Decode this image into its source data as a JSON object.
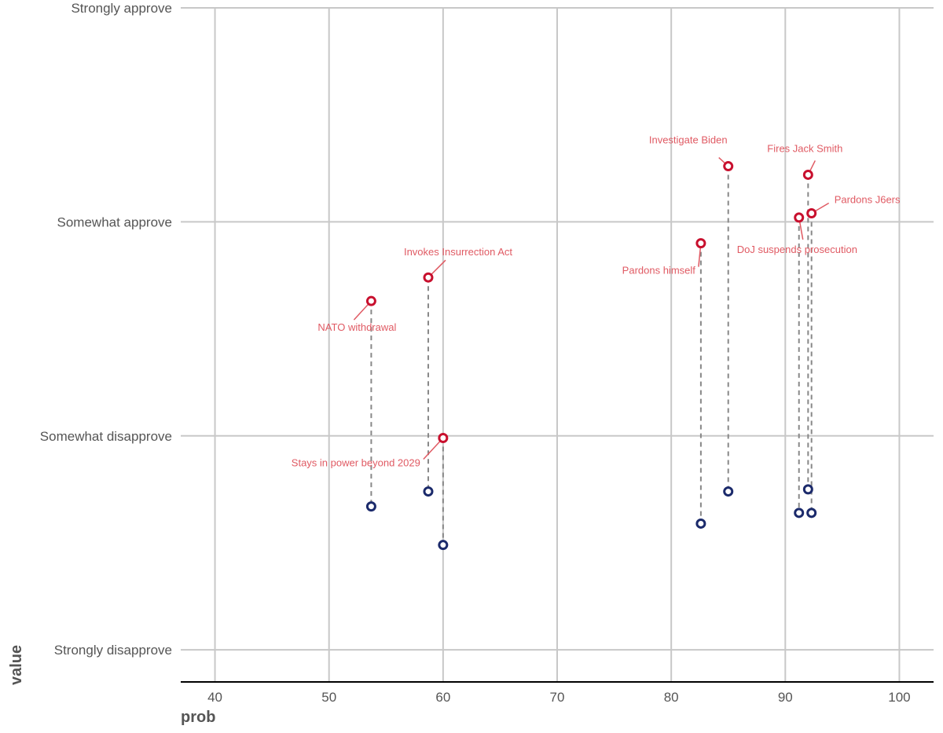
{
  "chart_data": {
    "type": "dumbbell",
    "xlabel": "prob",
    "ylabel": "value",
    "xlim": [
      37,
      103
    ],
    "ylim": [
      0.85,
      4.0
    ],
    "x_ticks": [
      40,
      50,
      60,
      70,
      80,
      90,
      100
    ],
    "y_ticks": [
      {
        "value": 1,
        "label": "Strongly disapprove"
      },
      {
        "value": 2,
        "label": "Somewhat disapprove"
      },
      {
        "value": 3,
        "label": "Somewhat approve"
      },
      {
        "value": 4,
        "label": "Strongly approve"
      }
    ],
    "colors": {
      "high": "#c8102e",
      "low": "#1b2a6b",
      "label": "#e05a63",
      "grid": "#c8c8c8",
      "axis": "#000000",
      "segment": "#888888"
    },
    "series": [
      {
        "name": "NATO withdrawal",
        "prob": 53.7,
        "high": 2.63,
        "low": 1.67
      },
      {
        "name": "Invokes Insurrection Act",
        "prob": 58.7,
        "high": 2.74,
        "low": 1.74
      },
      {
        "name": "Stays in power beyond 2029",
        "prob": 60.0,
        "high": 1.99,
        "low": 1.49
      },
      {
        "name": "Pardons himself",
        "prob": 82.6,
        "high": 2.9,
        "low": 1.59
      },
      {
        "name": "Investigate Biden",
        "prob": 85.0,
        "high": 3.26,
        "low": 1.74
      },
      {
        "name": "DoJ suspends prosecution",
        "prob": 91.2,
        "high": 3.02,
        "low": 1.64
      },
      {
        "name": "Fires Jack Smith",
        "prob": 92.0,
        "high": 3.22,
        "low": 1.75
      },
      {
        "name": "Pardons J6ers",
        "prob": 92.3,
        "high": 3.04,
        "low": 1.64
      }
    ]
  }
}
